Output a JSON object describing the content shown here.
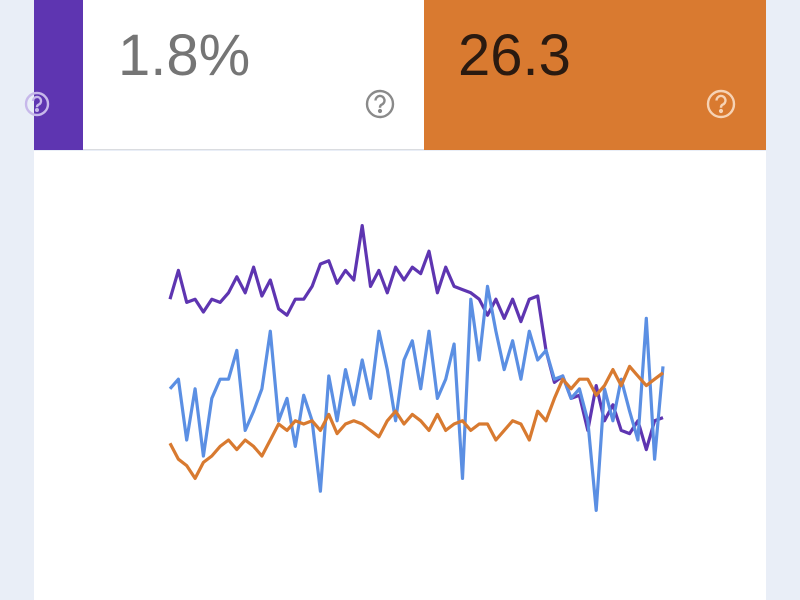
{
  "cards": [
    {
      "value": "1.8%"
    },
    {
      "value": "26.3"
    }
  ],
  "chart_data": {
    "type": "line",
    "ylim": [
      0,
      100
    ],
    "series": [
      {
        "color": "#5e35b1",
        "values": [
          69,
          78,
          68,
          69,
          65,
          69,
          68,
          71,
          76,
          71,
          79,
          70,
          75,
          66,
          64,
          69,
          69,
          73,
          80,
          81,
          74,
          78,
          75,
          92,
          73,
          78,
          71,
          79,
          75,
          79,
          77,
          84,
          71,
          79,
          73,
          72,
          71,
          69,
          64,
          69,
          63,
          69,
          62,
          69,
          70,
          53,
          43,
          45,
          38,
          39,
          28,
          42,
          31,
          36,
          28,
          27,
          31,
          22,
          31,
          32
        ]
      },
      {
        "color": "#5b8fe3",
        "values": [
          41,
          44,
          25,
          41,
          20,
          38,
          44,
          44,
          53,
          28,
          34,
          41,
          59,
          31,
          38,
          23,
          39,
          31,
          9,
          45,
          31,
          47,
          36,
          50,
          38,
          59,
          47,
          31,
          50,
          56,
          41,
          59,
          38,
          44,
          55,
          13,
          69,
          50,
          73,
          59,
          47,
          56,
          44,
          59,
          50,
          53,
          44,
          45,
          38,
          41,
          31,
          3,
          41,
          31,
          44,
          34,
          25,
          63,
          19,
          48
        ]
      },
      {
        "color": "#d87a30",
        "values": [
          24,
          19,
          17,
          13,
          18,
          20,
          23,
          25,
          22,
          25,
          23,
          20,
          25,
          30,
          28,
          31,
          30,
          31,
          28,
          33,
          27,
          30,
          31,
          30,
          28,
          26,
          31,
          34,
          30,
          33,
          31,
          28,
          33,
          28,
          30,
          31,
          28,
          30,
          30,
          25,
          28,
          31,
          30,
          25,
          34,
          31,
          38,
          44,
          41,
          44,
          44,
          39,
          42,
          47,
          42,
          48,
          45,
          42,
          44,
          46
        ]
      }
    ]
  }
}
